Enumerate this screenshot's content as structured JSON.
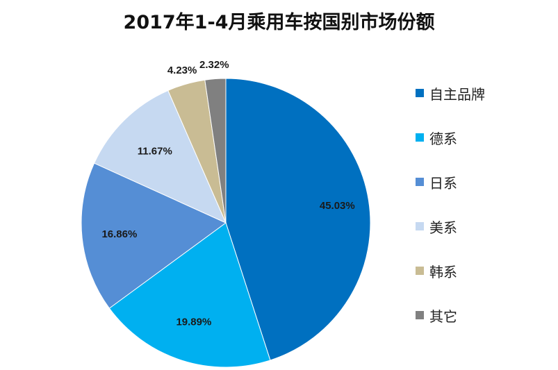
{
  "chart_data": {
    "type": "pie",
    "title": "2017年1-4月乘用车按国别市场份额",
    "categories": [
      "自主品牌",
      "德系",
      "日系",
      "美系",
      "韩系",
      "其它"
    ],
    "values": [
      45.03,
      19.89,
      16.86,
      11.67,
      4.23,
      2.32
    ],
    "labels": [
      "45.03%",
      "19.89%",
      "16.86%",
      "11.67%",
      "4.23%",
      "2.32%"
    ],
    "colors": [
      "#0070c0",
      "#00b0f0",
      "#558ed5",
      "#c6d9f1",
      "#c9bc94",
      "#808080"
    ],
    "legend_position": "right"
  }
}
